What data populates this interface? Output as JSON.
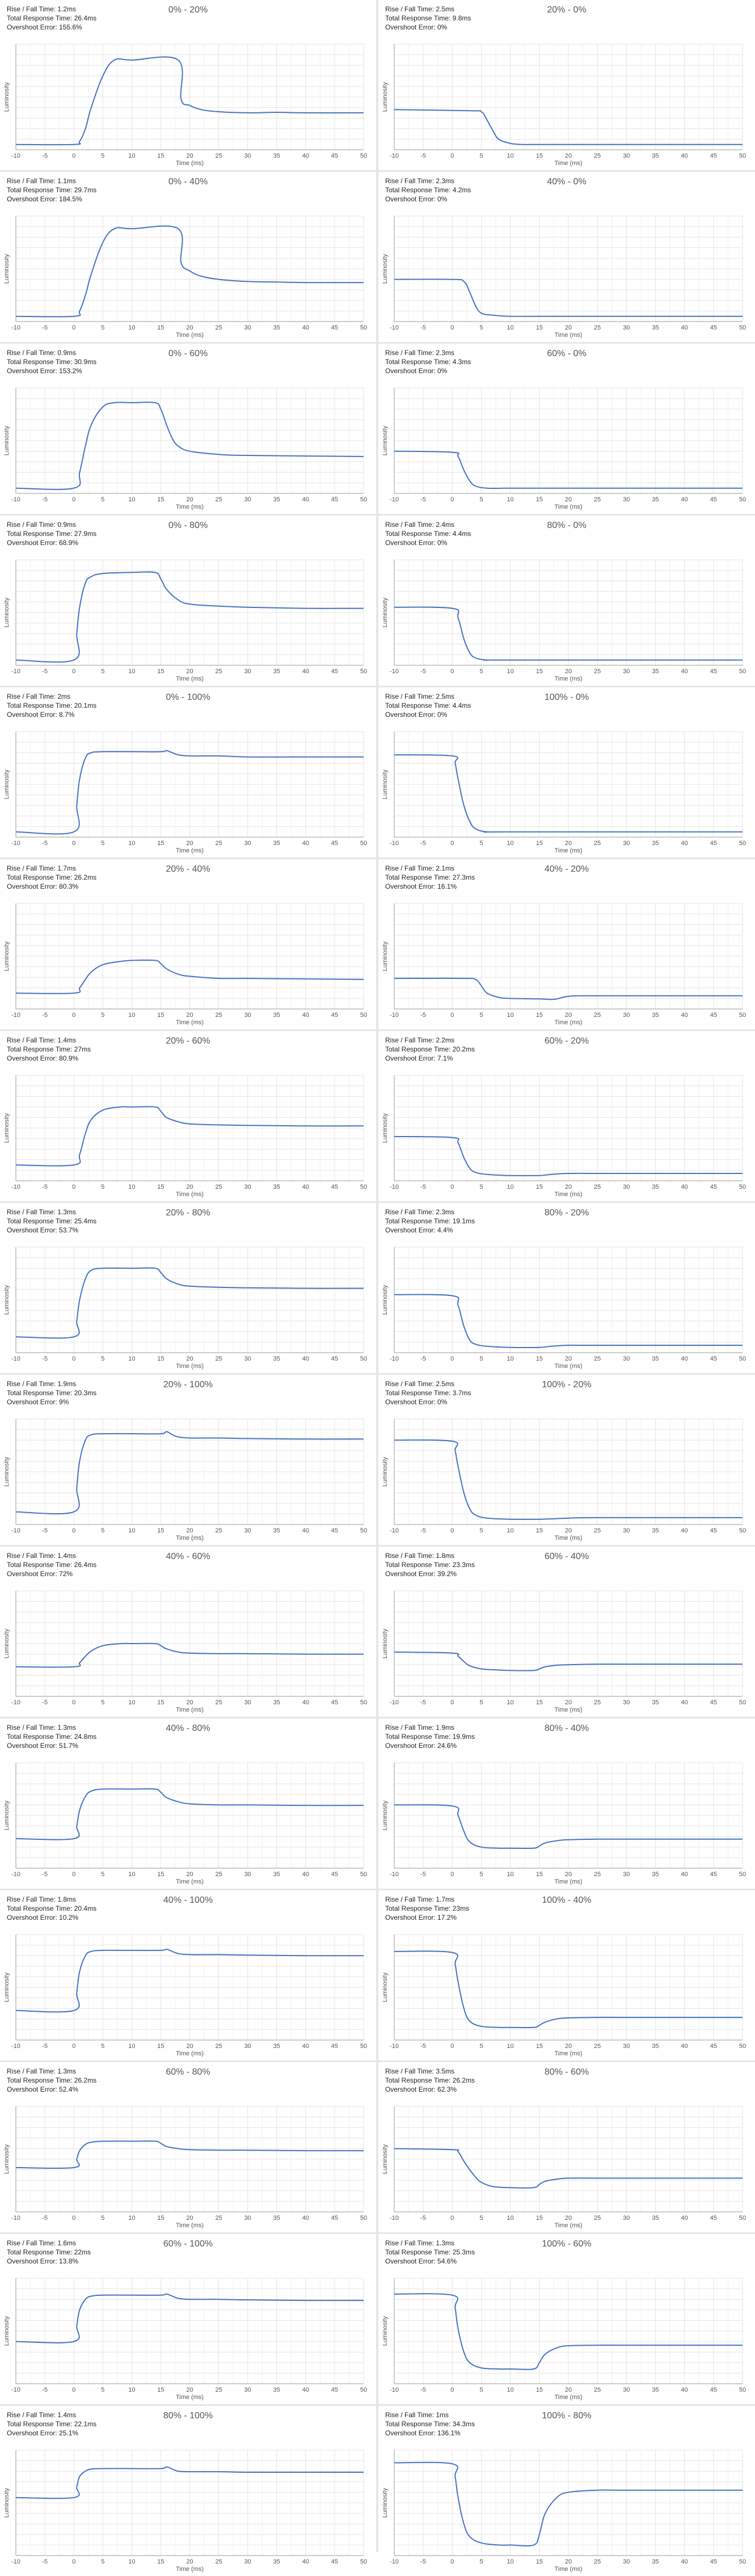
{
  "x_ticks": [
    "-10",
    "-5",
    "0",
    "5",
    "10",
    "15",
    "20",
    "25",
    "30",
    "35",
    "40",
    "45",
    "50"
  ],
  "labels": {
    "x_axis": "Time (ms)",
    "y_axis": "Luminosity",
    "rise_fall_prefix": "Rise / Fall Time: ",
    "total_prefix": "Total Response Time: ",
    "overshoot_prefix": "Overshoot Error: "
  },
  "colors": {
    "line": "#4472c4",
    "grid": "#e4e4e4",
    "axis": "#999999",
    "text": "#222222"
  },
  "chart_data": [
    {
      "type": "line",
      "title": "0% - 20%",
      "rise_fall": "1.2ms",
      "total": "26.4ms",
      "overshoot": "155.6%",
      "x": [
        -10,
        0,
        1,
        2,
        3,
        5,
        7,
        10,
        18,
        18.5,
        20,
        22,
        25,
        30,
        35,
        40,
        50
      ],
      "y": [
        5,
        5,
        8,
        20,
        40,
        70,
        85,
        85,
        85,
        48,
        42,
        38,
        36,
        35,
        35.5,
        35,
        35
      ],
      "ylim": [
        0,
        100
      ]
    },
    {
      "type": "line",
      "title": "20% - 0%",
      "rise_fall": "2.5ms",
      "total": "9.8ms",
      "overshoot": "0%",
      "x": [
        -10,
        3,
        5,
        6,
        7,
        8,
        10,
        12,
        15,
        20,
        50
      ],
      "y": [
        38,
        37,
        36,
        28,
        18,
        10,
        6,
        5,
        5,
        5,
        5
      ],
      "ylim": [
        0,
        100
      ]
    },
    {
      "type": "line",
      "title": "0% - 40%",
      "rise_fall": "1.1ms",
      "total": "29.7ms",
      "overshoot": "184.5%",
      "x": [
        -10,
        0,
        1,
        2,
        3,
        5,
        7,
        10,
        18,
        18.5,
        20,
        22,
        25,
        30,
        35,
        40,
        50
      ],
      "y": [
        5,
        5,
        10,
        25,
        45,
        75,
        88,
        88,
        88,
        56,
        48,
        43,
        40,
        38,
        37.5,
        37,
        37
      ],
      "ylim": [
        0,
        100
      ]
    },
    {
      "type": "line",
      "title": "40% - 0%",
      "rise_fall": "2.3ms",
      "total": "4.2ms",
      "overshoot": "0%",
      "x": [
        -10,
        0,
        2,
        3,
        4,
        5,
        7,
        10,
        15,
        50
      ],
      "y": [
        40,
        40,
        38,
        28,
        15,
        8,
        6,
        5,
        5,
        5
      ],
      "ylim": [
        0,
        100
      ]
    },
    {
      "type": "line",
      "title": "0% - 60%",
      "rise_fall": "0.9ms",
      "total": "30.9ms",
      "overshoot": "153.2%",
      "x": [
        -10,
        0,
        1,
        2,
        3,
        5,
        7,
        10,
        14,
        15,
        16,
        17,
        18,
        20,
        25,
        30,
        50
      ],
      "y": [
        5,
        5,
        20,
        45,
        65,
        82,
        86,
        86,
        86,
        80,
        65,
        52,
        45,
        40,
        37,
        36,
        35
      ],
      "ylim": [
        0,
        100
      ]
    },
    {
      "type": "line",
      "title": "60% - 0%",
      "rise_fall": "2.3ms",
      "total": "4.3ms",
      "overshoot": "0%",
      "x": [
        -10,
        0,
        1,
        2,
        3,
        4,
        6,
        10,
        15,
        50
      ],
      "y": [
        40,
        39,
        35,
        22,
        12,
        7,
        5,
        5,
        5,
        5
      ],
      "ylim": [
        0,
        100
      ]
    },
    {
      "type": "line",
      "title": "0% - 80%",
      "rise_fall": "0.9ms",
      "total": "27.9ms",
      "overshoot": "68.9%",
      "x": [
        -10,
        0,
        0.5,
        1,
        2,
        3,
        5,
        10,
        14,
        15,
        16,
        18,
        20,
        25,
        30,
        40,
        50
      ],
      "y": [
        5,
        5,
        30,
        55,
        78,
        84,
        87,
        88,
        88,
        82,
        72,
        62,
        58,
        56,
        55,
        54,
        54
      ],
      "ylim": [
        0,
        100
      ]
    },
    {
      "type": "line",
      "title": "80% - 0%",
      "rise_fall": "2.4ms",
      "total": "4.4ms",
      "overshoot": "0%",
      "x": [
        -10,
        0,
        1,
        2,
        3,
        4,
        6,
        10,
        50
      ],
      "y": [
        55,
        54,
        45,
        25,
        12,
        7,
        5,
        5,
        5
      ],
      "ylim": [
        0,
        100
      ]
    },
    {
      "type": "line",
      "title": "0% - 100%",
      "rise_fall": "2ms",
      "total": "20.1ms",
      "overshoot": "8.7%",
      "x": [
        -10,
        0,
        0.5,
        1,
        2,
        3,
        5,
        10,
        15,
        16,
        17,
        18,
        20,
        25,
        30,
        40,
        50
      ],
      "y": [
        5,
        5,
        30,
        55,
        75,
        80,
        81,
        81,
        81,
        82,
        80,
        78,
        77,
        77,
        76,
        76,
        76
      ],
      "ylim": [
        0,
        100
      ]
    },
    {
      "type": "line",
      "title": "100% - 0%",
      "rise_fall": "2.5ms",
      "total": "4.4ms",
      "overshoot": "0%",
      "x": [
        -10,
        0,
        0.5,
        1,
        2,
        3,
        4,
        6,
        10,
        50
      ],
      "y": [
        78,
        77,
        70,
        55,
        30,
        15,
        8,
        5,
        5,
        5
      ],
      "ylim": [
        0,
        100
      ]
    },
    {
      "type": "line",
      "title": "20% - 40%",
      "rise_fall": "1.7ms",
      "total": "26.2ms",
      "overshoot": "80.3%",
      "x": [
        -10,
        0,
        1,
        2,
        3,
        5,
        8,
        10,
        14,
        15,
        16,
        18,
        20,
        25,
        30,
        40,
        50
      ],
      "y": [
        15,
        15,
        20,
        28,
        35,
        42,
        45,
        46,
        46,
        43,
        38,
        33,
        31,
        29,
        29,
        28.5,
        28
      ],
      "ylim": [
        0,
        100
      ]
    },
    {
      "type": "line",
      "title": "40% - 20%",
      "rise_fall": "2.1ms",
      "total": "27.3ms",
      "overshoot": "16.1%",
      "x": [
        -10,
        2,
        4,
        5,
        6,
        8,
        10,
        15,
        17,
        18,
        19,
        20,
        22,
        25,
        30,
        40,
        50
      ],
      "y": [
        29,
        29,
        28,
        22,
        15,
        11,
        10,
        9.5,
        9,
        9.5,
        11,
        12,
        12.5,
        12.5,
        12.5,
        12.5,
        12.5
      ],
      "ylim": [
        0,
        100
      ]
    },
    {
      "type": "line",
      "title": "20% - 60%",
      "rise_fall": "1.4ms",
      "total": "27ms",
      "overshoot": "80.9%",
      "x": [
        -10,
        0,
        1,
        2,
        3,
        5,
        8,
        10,
        14,
        15,
        16,
        18,
        20,
        25,
        30,
        40,
        50
      ],
      "y": [
        15,
        15,
        25,
        45,
        58,
        67,
        70,
        70,
        70,
        66,
        60,
        56,
        54,
        53,
        52.5,
        52,
        52
      ],
      "ylim": [
        0,
        100
      ]
    },
    {
      "type": "line",
      "title": "60% - 20%",
      "rise_fall": "2.2ms",
      "total": "20.2ms",
      "overshoot": "7.1%",
      "x": [
        -10,
        0,
        1,
        2,
        3,
        4,
        6,
        10,
        15,
        16,
        18,
        20,
        25,
        30,
        50
      ],
      "y": [
        42,
        41,
        36,
        22,
        12,
        8,
        6,
        5,
        5,
        5.5,
        6.5,
        7,
        7,
        7,
        7
      ],
      "ylim": [
        0,
        100
      ]
    },
    {
      "type": "line",
      "title": "20% - 80%",
      "rise_fall": "1.3ms",
      "total": "25.4ms",
      "overshoot": "53.7%",
      "x": [
        -10,
        0,
        0.5,
        1,
        2,
        3,
        5,
        10,
        14,
        15,
        16,
        18,
        20,
        25,
        30,
        40,
        50
      ],
      "y": [
        15,
        15,
        30,
        50,
        70,
        78,
        80,
        80,
        80,
        76,
        70,
        65,
        63,
        62,
        61.5,
        61,
        61
      ],
      "ylim": [
        0,
        100
      ]
    },
    {
      "type": "line",
      "title": "80% - 20%",
      "rise_fall": "2.3ms",
      "total": "19.1ms",
      "overshoot": "4.4%",
      "x": [
        -10,
        0,
        1,
        2,
        3,
        4,
        6,
        10,
        15,
        17,
        20,
        25,
        50
      ],
      "y": [
        55,
        54,
        45,
        25,
        12,
        8,
        6,
        5,
        5,
        6,
        7,
        7,
        7
      ],
      "ylim": [
        0,
        100
      ]
    },
    {
      "type": "line",
      "title": "20% - 100%",
      "rise_fall": "1.9ms",
      "total": "20.3ms",
      "overshoot": "9%",
      "x": [
        -10,
        0,
        0.5,
        1,
        2,
        3,
        5,
        10,
        15,
        16,
        17,
        18,
        20,
        25,
        30,
        40,
        50
      ],
      "y": [
        12,
        12,
        35,
        60,
        80,
        85,
        86,
        86,
        86,
        88,
        85,
        83,
        82,
        82,
        81.5,
        81,
        81
      ],
      "ylim": [
        0,
        100
      ]
    },
    {
      "type": "line",
      "title": "100% - 20%",
      "rise_fall": "2.5ms",
      "total": "3.7ms",
      "overshoot": "0%",
      "x": [
        -10,
        0,
        0.5,
        1,
        2,
        3,
        4,
        6,
        10,
        15,
        20,
        25,
        50
      ],
      "y": [
        80,
        79,
        70,
        55,
        30,
        15,
        9,
        6,
        5,
        5,
        6,
        6.5,
        6.5
      ],
      "ylim": [
        0,
        100
      ]
    },
    {
      "type": "line",
      "title": "40% - 60%",
      "rise_fall": "1.4ms",
      "total": "26.4ms",
      "overshoot": "72%",
      "x": [
        -10,
        0,
        1,
        2,
        3,
        5,
        8,
        10,
        14,
        15,
        16,
        18,
        20,
        25,
        30,
        40,
        50
      ],
      "y": [
        28,
        28,
        32,
        38,
        43,
        48,
        50,
        50,
        50,
        48,
        45,
        42,
        41,
        40.5,
        40.5,
        40,
        40
      ],
      "ylim": [
        0,
        100
      ]
    },
    {
      "type": "line",
      "title": "60% - 40%",
      "rise_fall": "1.8ms",
      "total": "23.3ms",
      "overshoot": "39.2%",
      "x": [
        -10,
        0,
        1,
        2,
        3,
        5,
        8,
        10,
        14,
        15,
        16,
        18,
        20,
        25,
        30,
        40,
        50
      ],
      "y": [
        42,
        41,
        38,
        33,
        29,
        26,
        25,
        24.5,
        24.5,
        26,
        28,
        29.5,
        30,
        30.5,
        30.5,
        30.5,
        30.5
      ],
      "ylim": [
        0,
        100
      ]
    },
    {
      "type": "line",
      "title": "40% - 80%",
      "rise_fall": "1.3ms",
      "total": "24.8ms",
      "overshoot": "51.7%",
      "x": [
        -10,
        0,
        0.5,
        1,
        2,
        3,
        5,
        10,
        14,
        15,
        16,
        18,
        20,
        25,
        30,
        40,
        50
      ],
      "y": [
        28,
        28,
        40,
        55,
        68,
        73,
        75,
        75,
        75,
        72,
        67,
        63,
        61,
        60,
        60,
        59.5,
        59.5
      ],
      "ylim": [
        0,
        100
      ]
    },
    {
      "type": "line",
      "title": "80% - 40%",
      "rise_fall": "1.9ms",
      "total": "19.9ms",
      "overshoot": "24.6%",
      "x": [
        -10,
        0,
        1,
        2,
        3,
        5,
        8,
        10,
        14,
        15,
        16,
        18,
        20,
        25,
        30,
        40,
        50
      ],
      "y": [
        60,
        59,
        50,
        35,
        25,
        20,
        19,
        19,
        19,
        21,
        24,
        26,
        27,
        27.5,
        27.5,
        27.5,
        27.5
      ],
      "ylim": [
        0,
        100
      ]
    },
    {
      "type": "line",
      "title": "40% - 100%",
      "rise_fall": "1.8ms",
      "total": "20.4ms",
      "overshoot": "10.2%",
      "x": [
        -10,
        0,
        0.5,
        1,
        2,
        3,
        5,
        10,
        15,
        16,
        17,
        18,
        20,
        25,
        30,
        40,
        50
      ],
      "y": [
        28,
        28,
        45,
        65,
        80,
        84,
        85,
        85,
        85,
        86,
        84,
        82,
        81,
        81,
        80.5,
        80,
        80
      ],
      "ylim": [
        0,
        100
      ]
    },
    {
      "type": "line",
      "title": "100% - 40%",
      "rise_fall": "1.7ms",
      "total": "23ms",
      "overshoot": "17.2%",
      "x": [
        -10,
        0,
        0.5,
        1,
        2,
        3,
        5,
        8,
        10,
        14,
        15,
        16,
        18,
        20,
        25,
        30,
        50
      ],
      "y": [
        84,
        83,
        72,
        55,
        30,
        18,
        13,
        12,
        12,
        12,
        14,
        17,
        20,
        21,
        21.5,
        21.5,
        21.5
      ],
      "ylim": [
        0,
        100
      ]
    },
    {
      "type": "line",
      "title": "60% - 80%",
      "rise_fall": "1.3ms",
      "total": "26.2ms",
      "overshoot": "52.4%",
      "x": [
        -10,
        0,
        0.5,
        1,
        2,
        3,
        5,
        10,
        14,
        15,
        16,
        18,
        20,
        25,
        30,
        40,
        50
      ],
      "y": [
        42,
        42,
        50,
        58,
        64,
        66,
        67,
        67,
        67,
        65,
        62,
        60,
        59,
        58.5,
        58.5,
        58,
        58
      ],
      "ylim": [
        0,
        100
      ]
    },
    {
      "type": "line",
      "title": "80% - 60%",
      "rise_fall": "3.5ms",
      "total": "26.2ms",
      "overshoot": "62.3%",
      "x": [
        -10,
        0,
        1,
        2,
        3,
        4,
        5,
        7,
        10,
        14,
        15,
        16,
        18,
        20,
        25,
        30,
        50
      ],
      "y": [
        60,
        59,
        57,
        48,
        40,
        33,
        28,
        24,
        23,
        23,
        26,
        29,
        31,
        32,
        32,
        32,
        32
      ],
      "ylim": [
        0,
        100
      ]
    },
    {
      "type": "line",
      "title": "60% - 100%",
      "rise_fall": "1.6ms",
      "total": "22ms",
      "overshoot": "13.8%",
      "x": [
        -10,
        0,
        0.5,
        1,
        2,
        3,
        5,
        10,
        15,
        16,
        17,
        18,
        20,
        25,
        30,
        40,
        50
      ],
      "y": [
        40,
        40,
        55,
        70,
        80,
        83,
        84,
        84,
        84,
        85,
        83,
        81,
        80,
        80,
        79.5,
        79,
        79
      ],
      "ylim": [
        0,
        100
      ]
    },
    {
      "type": "line",
      "title": "100% - 60%",
      "rise_fall": "1.3ms",
      "total": "25.3ms",
      "overshoot": "54.6%",
      "x": [
        -10,
        0,
        0.5,
        1,
        2,
        3,
        5,
        8,
        10,
        14,
        15,
        16,
        18,
        20,
        25,
        30,
        50
      ],
      "y": [
        85,
        84,
        72,
        52,
        30,
        20,
        15,
        14,
        14,
        14,
        20,
        28,
        34,
        36,
        36.5,
        36.5,
        36.5
      ],
      "ylim": [
        0,
        100
      ]
    },
    {
      "type": "line",
      "title": "80% - 100%",
      "rise_fall": "1.4ms",
      "total": "22.1ms",
      "overshoot": "25.1%",
      "x": [
        -10,
        0,
        0.5,
        1,
        2,
        3,
        5,
        10,
        15,
        16,
        17,
        18,
        20,
        25,
        30,
        40,
        50
      ],
      "y": [
        55,
        55,
        65,
        75,
        80,
        82,
        82.5,
        82.5,
        82.5,
        84,
        82,
        80,
        79.5,
        79.5,
        79,
        79,
        79
      ],
      "ylim": [
        0,
        100
      ]
    },
    {
      "type": "line",
      "title": "100% - 80%",
      "rise_fall": "1ms",
      "total": "34.3ms",
      "overshoot": "136.1%",
      "x": [
        -10,
        0,
        0.5,
        1,
        2,
        3,
        5,
        8,
        10,
        14,
        15,
        16,
        18,
        20,
        25,
        30,
        50
      ],
      "y": [
        88,
        87,
        75,
        55,
        30,
        18,
        12,
        10,
        10,
        10,
        20,
        40,
        55,
        60,
        62,
        62,
        62
      ],
      "ylim": [
        0,
        100
      ]
    }
  ]
}
